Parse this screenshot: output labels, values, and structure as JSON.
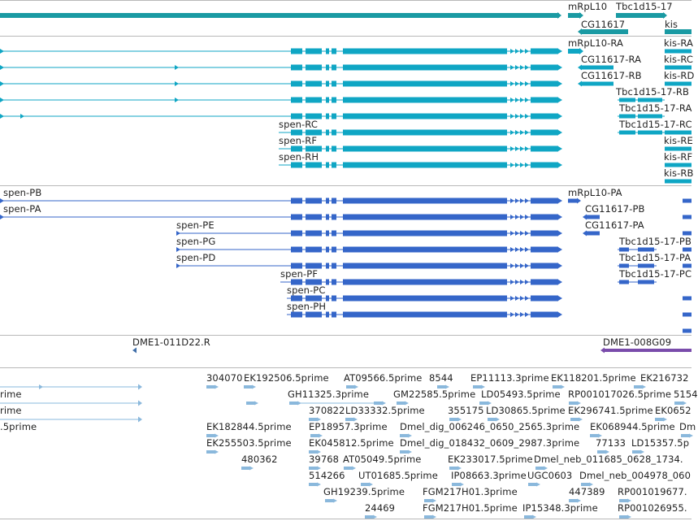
{
  "colors": {
    "gene_track": "#1a9aa3",
    "transcript_track": "#0fa6c4",
    "protein_track": "#3566c9",
    "marker": "#7a4cab",
    "marker_dark": "#3f6ea8",
    "est_track": "#8ab8dc",
    "separator": "#b8b8b8"
  },
  "gene_track": {
    "labels": [
      "mRpL10",
      "Tbc1d15-17",
      "CG11617",
      "kis"
    ]
  },
  "transcript_track": {
    "labels": [
      "mRpL10-RA",
      "kis-RA",
      "CG11617-RA",
      "kis-RC",
      "CG11617-RB",
      "kis-RD",
      "Tbc1d15-17-RB",
      "Tbc1d15-17-RA",
      "Tbc1d15-17-RC",
      "spen-RC",
      "spen-RF",
      "kis-RE",
      "spen-RH",
      "kis-RF",
      "kis-RB"
    ]
  },
  "protein_track": {
    "labels": [
      "spen-PB",
      "mRpL10-PA",
      "spen-PA",
      "CG11617-PB",
      "spen-PE",
      "CG11617-PA",
      "spen-PG",
      "Tbc1d15-17-PB",
      "spen-PD",
      "Tbc1d15-17-PA",
      "spen-PF",
      "Tbc1d15-17-PC",
      "spen-PC",
      "spen-PH"
    ]
  },
  "marker_track": {
    "labels": [
      "DME1-011D22.R",
      "DME1-008G09"
    ]
  },
  "est_track": {
    "labels": [
      "304070",
      "EK192506.5prime",
      "AT09566.5prime",
      "8544",
      "EP11113.3prime",
      "EK118201.5prime",
      "EK216732",
      "rime",
      "GH11325.3prime",
      "GM22585.5prime",
      "LD05493.5prime",
      "RP001017026.5prime",
      "5154",
      "rime",
      "370822",
      "LD33332.5prime",
      "355175",
      "LD30865.5prime",
      "EK296741.5prime",
      "EK0652",
      ".5prime",
      "EK182844.5prime",
      "EP18957.3prime",
      "Dmel_dig_006246_0650_2565.3prime",
      "EK068944.5prime",
      "Dm",
      "EK255503.5prime",
      "EK045812.5prime",
      "Dmel_dig_018432_0609_2987.3prime",
      "77133",
      "LD15357.5p",
      "480362",
      "39768",
      "AT05049.5prime",
      "EK233017.5prime",
      "Dmel_neb_011685_0628_1734.",
      "514266",
      "UT01685.5prime",
      "IP08663.3prime",
      "UGC0603",
      "Dmel_neb_004978_060",
      "GH19239.5prime",
      "FGM217H01.3prime",
      "447389",
      "RP001019677.",
      "24469",
      "FGM217H01.5prime",
      "IP15348.3prime",
      "RP001026955."
    ]
  }
}
